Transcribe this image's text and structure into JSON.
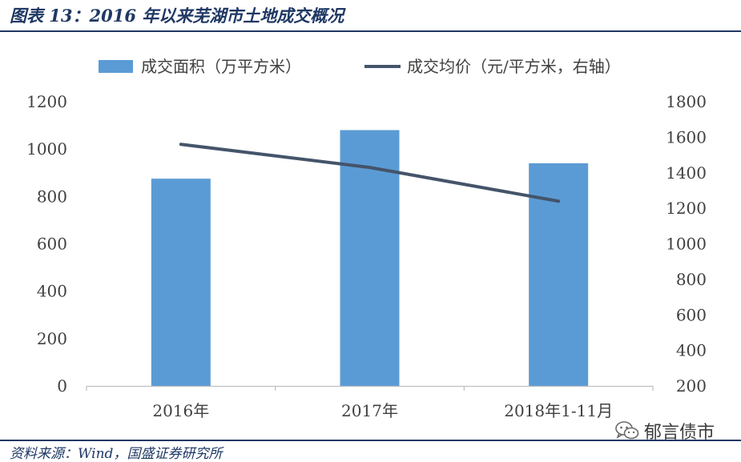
{
  "figure": {
    "title": "图表 13：2016 年以来芜湖市土地成交概况",
    "source": "资料来源：Wind，国盛证券研究所",
    "watermark": "郁言债市"
  },
  "chart_data": {
    "type": "bar",
    "categories": [
      "2016年",
      "2017年",
      "2018年1-11月"
    ],
    "series": [
      {
        "name": "成交面积（万平方米）",
        "kind": "bar",
        "axis": "left",
        "color": "#5b9bd5",
        "values": [
          875,
          1080,
          940
        ]
      },
      {
        "name": "成交均价（元/平方米，右轴）",
        "kind": "line",
        "axis": "right",
        "color": "#44546a",
        "values": [
          1560,
          1430,
          1240
        ]
      }
    ],
    "y_left": {
      "min": 0,
      "max": 1200,
      "ticks": [
        0,
        200,
        400,
        600,
        800,
        1000,
        1200
      ]
    },
    "y_right": {
      "min": 200,
      "max": 1800,
      "ticks": [
        200,
        400,
        600,
        800,
        1000,
        1200,
        1400,
        1600,
        1800
      ]
    },
    "legend_position": "top",
    "grid": false
  }
}
